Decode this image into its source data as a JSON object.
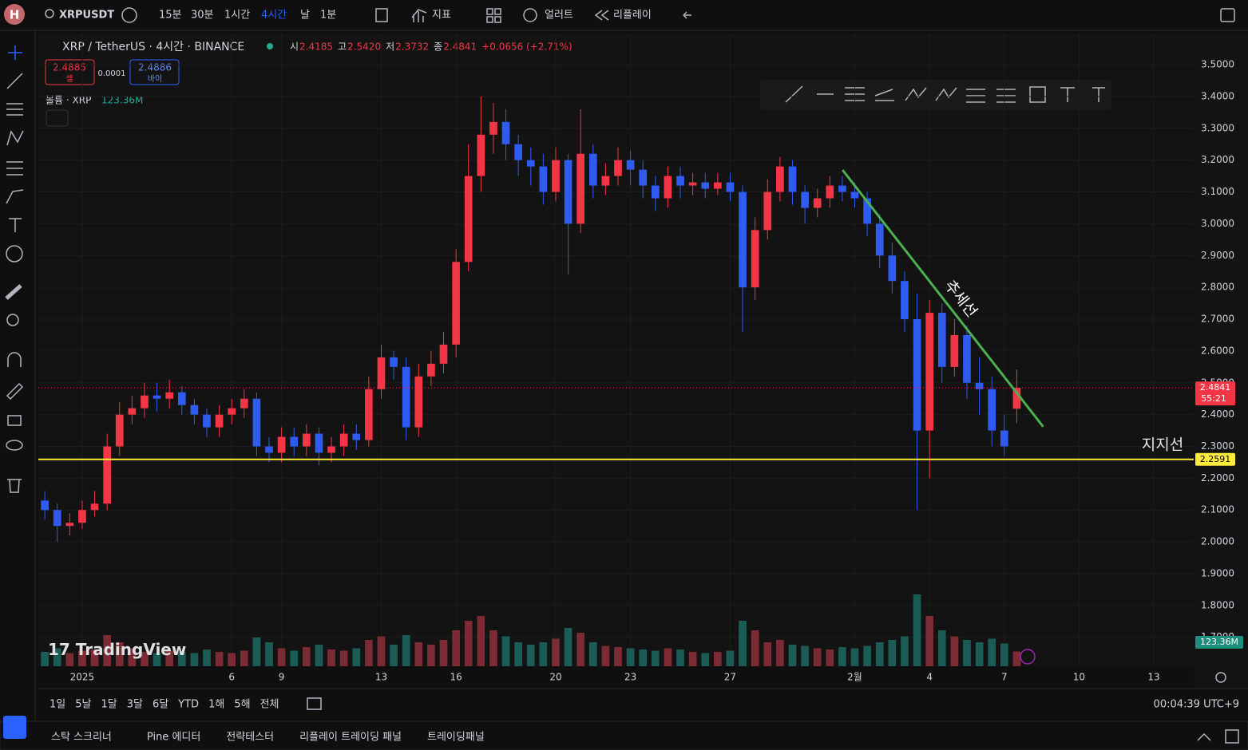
{
  "toolbar": {
    "avatar": "H",
    "symbol": "XRPUSDT",
    "intervals": [
      "15분",
      "30분",
      "1시간",
      "4시간",
      "날",
      "1분"
    ],
    "indicators": "지표",
    "alert": "얼러트",
    "replay": "리플레이"
  },
  "legend": {
    "title": "XRP / TetherUS · 4시간 · BINANCE",
    "ohlc": [
      {
        "key": "시",
        "value": "2.4185"
      },
      {
        "key": "고",
        "value": "2.5420"
      },
      {
        "key": "저",
        "value": "2.3732"
      },
      {
        "key": "종",
        "value": "2.4841"
      }
    ],
    "change": "+0.0656 (+2.71%)",
    "sell_price": "2.4885",
    "sell": "셀",
    "spread": "0.0001",
    "buy_price": "2.4886",
    "buy": "바이",
    "volume_title": "볼륨 · XRP",
    "volume_value": "123.36M"
  },
  "chart_data": {
    "type": "candlestick",
    "x": [
      -1.5,
      -1,
      -0.5,
      0,
      0.5,
      1,
      1.5,
      2,
      2.5,
      3,
      3.5,
      4,
      4.5,
      5,
      5.5,
      6,
      6.5,
      7,
      7.5,
      8,
      8.5,
      9,
      9.5,
      10,
      10.5,
      11,
      11.5,
      12,
      12.5,
      13,
      13.5,
      14,
      14.5,
      15,
      15.5,
      16,
      16.5,
      17,
      17.5,
      18,
      18.5,
      19,
      19.5,
      20,
      20.5,
      21,
      21.5,
      22,
      22.5,
      23,
      23.5,
      24,
      24.5,
      25,
      25.5,
      26,
      26.5,
      27,
      27.5,
      28,
      28.5,
      29,
      29.5,
      30,
      30.5,
      31,
      31.5,
      32,
      32.5,
      33,
      33.5,
      34,
      34.5,
      35,
      35.5,
      36,
      36.5,
      37,
      37.5
    ],
    "open": [
      2.13,
      2.1,
      2.05,
      2.06,
      2.1,
      2.12,
      2.3,
      2.4,
      2.42,
      2.46,
      2.45,
      2.47,
      2.43,
      2.4,
      2.36,
      2.4,
      2.42,
      2.45,
      2.3,
      2.28,
      2.33,
      2.3,
      2.34,
      2.28,
      2.3,
      2.34,
      2.32,
      2.48,
      2.58,
      2.55,
      2.36,
      2.52,
      2.56,
      2.62,
      2.88,
      3.15,
      3.28,
      3.32,
      3.25,
      3.2,
      3.18,
      3.1,
      3.2,
      3.0,
      3.22,
      3.12,
      3.15,
      3.2,
      3.17,
      3.12,
      3.08,
      3.15,
      3.12,
      3.13,
      3.11,
      3.13,
      3.1,
      2.8,
      2.98,
      3.1,
      3.18,
      3.1,
      3.05,
      3.08,
      3.12,
      3.1,
      3.08,
      3.0,
      2.9,
      2.82,
      2.7,
      2.35,
      2.72,
      2.55,
      2.65,
      2.5,
      2.48,
      2.35,
      2.4185
    ],
    "high": [
      2.16,
      2.12,
      2.09,
      2.13,
      2.16,
      2.34,
      2.44,
      2.46,
      2.5,
      2.5,
      2.51,
      2.49,
      2.45,
      2.42,
      2.43,
      2.45,
      2.48,
      2.47,
      2.33,
      2.36,
      2.36,
      2.37,
      2.36,
      2.33,
      2.37,
      2.37,
      2.52,
      2.62,
      2.6,
      2.58,
      2.56,
      2.6,
      2.66,
      2.92,
      3.25,
      3.4,
      3.38,
      3.36,
      3.28,
      3.24,
      3.22,
      3.24,
      3.22,
      3.36,
      3.25,
      3.19,
      3.24,
      3.23,
      3.2,
      3.15,
      3.18,
      3.18,
      3.16,
      3.16,
      3.16,
      3.16,
      3.12,
      3.02,
      3.14,
      3.21,
      3.2,
      3.12,
      3.11,
      3.15,
      3.15,
      3.13,
      3.1,
      3.03,
      2.94,
      2.85,
      2.78,
      2.76,
      2.75,
      2.7,
      2.68,
      2.58,
      2.52,
      2.4,
      2.542
    ],
    "low": [
      2.07,
      2.0,
      2.02,
      2.04,
      2.08,
      2.1,
      2.27,
      2.37,
      2.39,
      2.41,
      2.42,
      2.4,
      2.37,
      2.33,
      2.33,
      2.37,
      2.39,
      2.27,
      2.25,
      2.25,
      2.27,
      2.27,
      2.24,
      2.25,
      2.27,
      2.29,
      2.3,
      2.45,
      2.51,
      2.32,
      2.33,
      2.49,
      2.53,
      2.58,
      2.85,
      3.1,
      3.22,
      3.2,
      3.15,
      3.12,
      3.06,
      3.07,
      2.84,
      2.97,
      3.08,
      3.09,
      3.12,
      3.12,
      3.08,
      3.04,
      3.05,
      3.08,
      3.09,
      3.08,
      3.09,
      3.07,
      2.66,
      2.76,
      2.95,
      3.07,
      3.06,
      3.0,
      3.02,
      3.05,
      3.07,
      3.05,
      2.96,
      2.86,
      2.78,
      2.66,
      2.1,
      2.2,
      2.5,
      2.52,
      2.45,
      2.4,
      2.3,
      2.27,
      2.3732
    ],
    "close": [
      2.1,
      2.05,
      2.06,
      2.1,
      2.12,
      2.3,
      2.4,
      2.42,
      2.46,
      2.45,
      2.47,
      2.43,
      2.4,
      2.36,
      2.4,
      2.42,
      2.45,
      2.3,
      2.28,
      2.33,
      2.3,
      2.34,
      2.28,
      2.3,
      2.34,
      2.32,
      2.48,
      2.58,
      2.55,
      2.36,
      2.52,
      2.56,
      2.62,
      2.88,
      3.15,
      3.28,
      3.32,
      3.25,
      3.2,
      3.18,
      3.1,
      3.2,
      3.0,
      3.22,
      3.12,
      3.15,
      3.2,
      3.17,
      3.12,
      3.08,
      3.15,
      3.12,
      3.13,
      3.11,
      3.13,
      3.1,
      2.8,
      2.98,
      3.1,
      3.18,
      3.1,
      3.05,
      3.08,
      3.12,
      3.1,
      3.08,
      3.0,
      2.9,
      2.82,
      2.7,
      2.35,
      2.72,
      2.55,
      2.65,
      2.5,
      2.48,
      2.35,
      2.3,
      2.4841
    ],
    "volume": [
      120,
      150,
      110,
      130,
      140,
      260,
      200,
      150,
      120,
      110,
      130,
      120,
      110,
      140,
      120,
      110,
      130,
      240,
      200,
      150,
      130,
      160,
      180,
      140,
      130,
      150,
      220,
      250,
      180,
      260,
      200,
      180,
      220,
      300,
      380,
      420,
      300,
      250,
      200,
      180,
      200,
      230,
      320,
      280,
      200,
      170,
      160,
      150,
      140,
      130,
      150,
      140,
      120,
      110,
      120,
      130,
      380,
      300,
      200,
      220,
      180,
      170,
      150,
      140,
      160,
      150,
      170,
      200,
      220,
      250,
      600,
      420,
      300,
      250,
      220,
      200,
      230,
      190,
      123.36
    ],
    "up_color": "#f23645",
    "down_color": "#2f5bf0",
    "volume_up_color": "#7c2a33",
    "volume_down_color": "#1c5c56",
    "xlim": [
      -1.76,
      44.6
    ],
    "xticks": [
      {
        "value": 0,
        "label": "2025"
      },
      6,
      {
        "value": 8,
        "label": "9"
      },
      {
        "value": 12,
        "label": "13"
      },
      {
        "value": 15,
        "label": "16"
      },
      {
        "value": 19,
        "label": "20"
      },
      {
        "value": 22,
        "label": "23"
      },
      {
        "value": 26,
        "label": "27"
      },
      {
        "value": 31,
        "label": "2월"
      },
      {
        "value": 34,
        "label": "4"
      },
      {
        "value": 37,
        "label": "7"
      },
      {
        "value": 40,
        "label": "10"
      },
      {
        "value": 43,
        "label": "13"
      }
    ],
    "ylim": [
      1.609,
      3.598
    ],
    "yticks": [
      {
        "value": 1.7,
        "label": "1.7000"
      },
      {
        "value": 1.8,
        "label": "1.8000"
      },
      {
        "value": 1.9,
        "label": "1.9000"
      },
      {
        "value": 2.0,
        "label": "2.0000"
      },
      {
        "value": 2.1,
        "label": "2.1000"
      },
      {
        "value": 2.2,
        "label": "2.2000"
      },
      {
        "value": 2.3,
        "label": "2.3000"
      },
      {
        "value": 2.4,
        "label": "2.4000"
      },
      {
        "value": 2.5,
        "label": "2.5000"
      },
      {
        "value": 2.6,
        "label": "2.6000"
      },
      {
        "value": 2.7,
        "label": "2.7000"
      },
      {
        "value": 2.8,
        "label": "2.8000"
      },
      {
        "value": 2.9,
        "label": "2.9000"
      },
      {
        "value": 3.0,
        "label": "3.0000"
      },
      {
        "value": 3.1,
        "label": "3.1000"
      },
      {
        "value": 3.2,
        "label": "3.2000"
      },
      {
        "value": 3.3,
        "label": "3.3000"
      },
      {
        "value": 3.4,
        "label": "3.4000"
      },
      {
        "value": 3.5,
        "label": "3.5000"
      }
    ],
    "trend_line": {
      "label": "추세선",
      "x": [
        30.51,
        38.56
      ],
      "y": [
        3.169,
        2.362
      ],
      "color": "#4caf50"
    },
    "support_line": {
      "label": "지지선",
      "value": 2.2591,
      "color": "#ffeb3b"
    },
    "last_price": {
      "value": 2.4841,
      "countdown": "55:21",
      "color": "#f23645"
    },
    "volume_label": "123.36M"
  },
  "watermark": "TradingView",
  "range_bar": {
    "ranges": [
      "1일",
      "5날",
      "1달",
      "3달",
      "6달",
      "YTD",
      "1해",
      "5해",
      "전체"
    ],
    "clock": "00:04:39 UTC+9"
  },
  "bottom_panel": {
    "tabs": [
      "스탁 스크리너",
      "Pine 에디터",
      "전략테스터",
      "리플레이 트레이딩 패널",
      "트레이딩패널"
    ]
  }
}
